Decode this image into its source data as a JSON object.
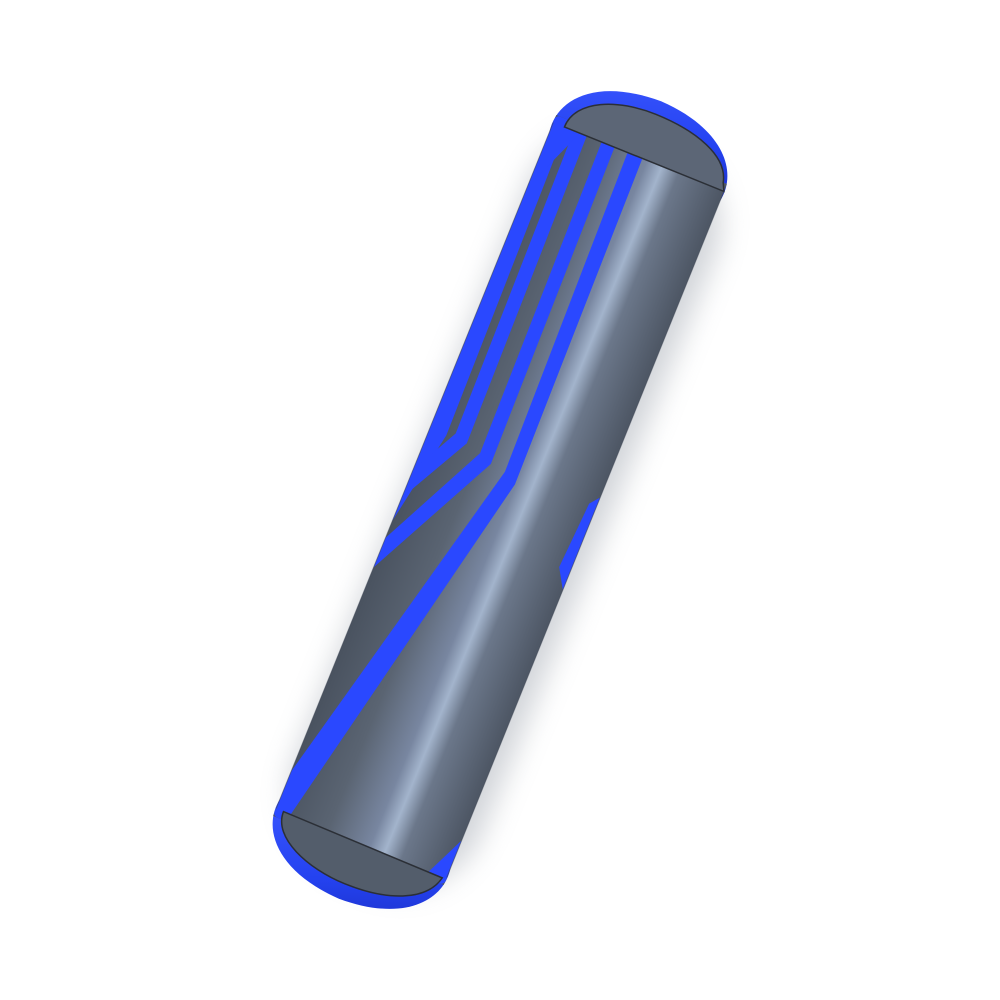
{
  "scene": {
    "object": "cylinder-pin",
    "colors": {
      "background": "#ffffff",
      "body_dark": "#4e5866",
      "body_mid": "#66707e",
      "body_highlight": "#9eb0c8",
      "accent_blue": "#2a48ff",
      "accent_blue_dark": "#1f33d6",
      "edge_line": "#2b2f36",
      "shadow": "#8a8f99"
    }
  }
}
